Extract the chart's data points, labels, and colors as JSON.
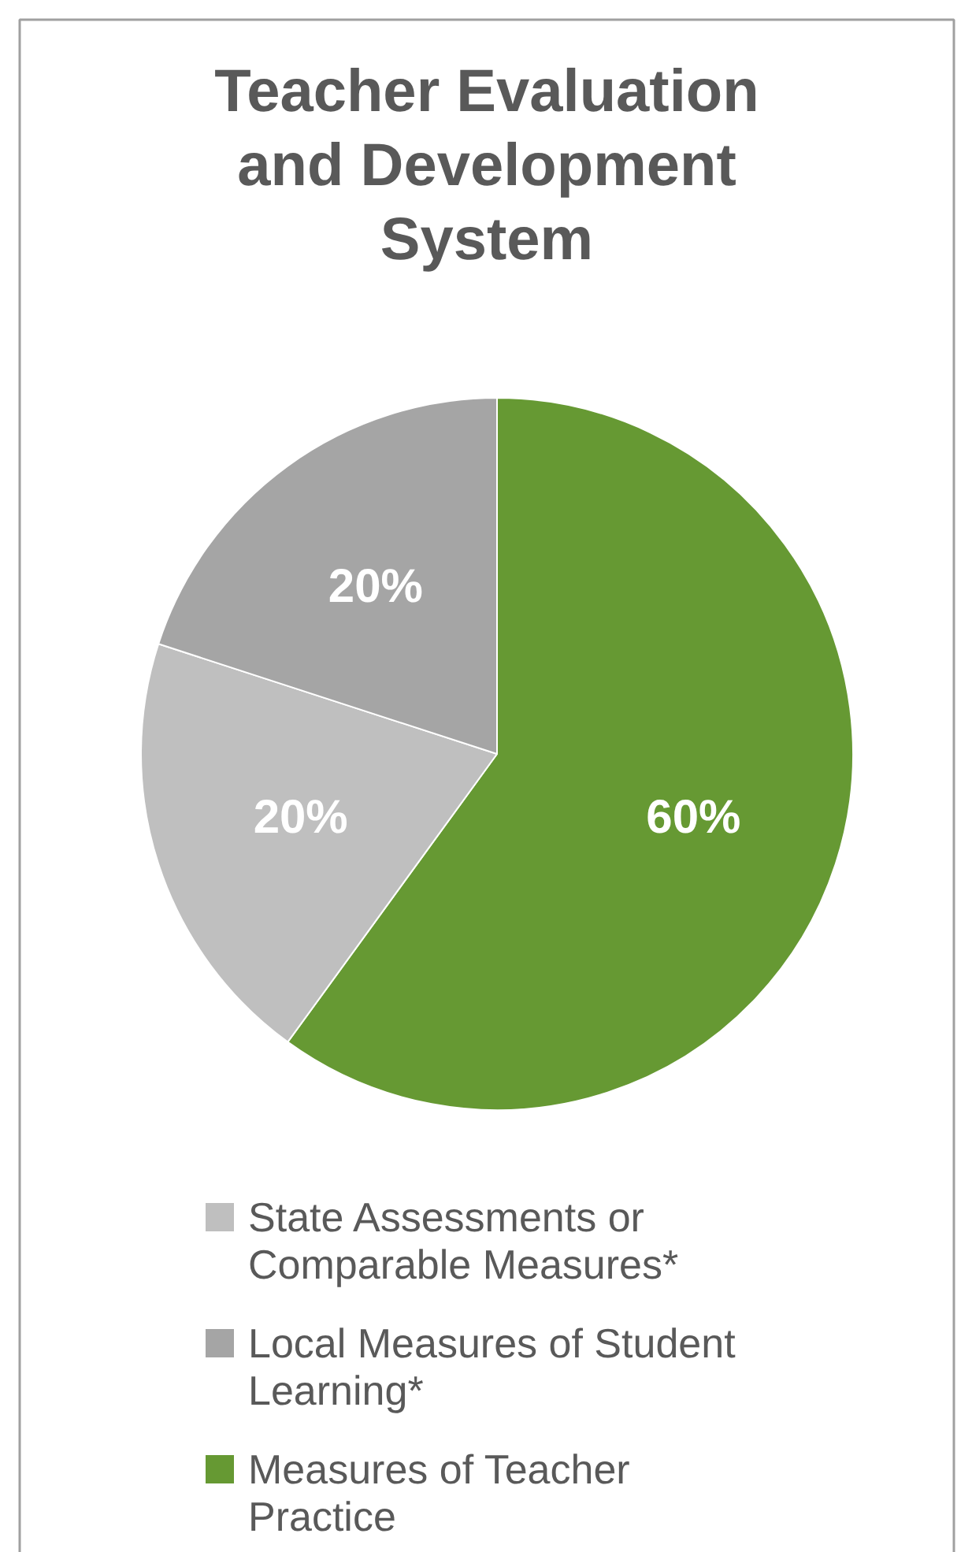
{
  "chart_data": {
    "type": "pie",
    "title": "Teacher Evaluation and Development System",
    "categories": [
      "State Assessments or Comparable Measures*",
      "Local Measures of Student Learning*",
      "Measures of Teacher Practice"
    ],
    "values": [
      20,
      20,
      60
    ],
    "value_labels": [
      "20%",
      "20%",
      "60%"
    ],
    "colors": [
      "#bfbfbf",
      "#a5a5a5",
      "#669933"
    ],
    "legend": "bottom"
  }
}
